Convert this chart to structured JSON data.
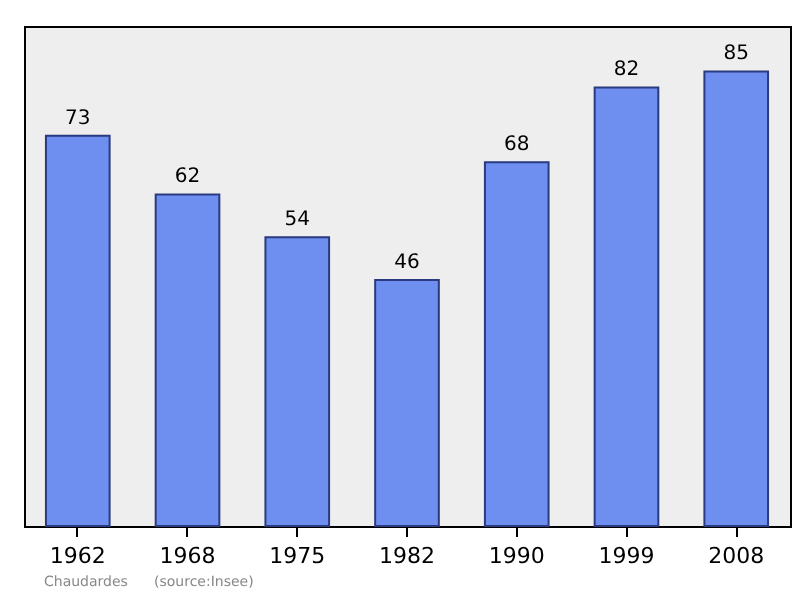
{
  "chart_data": {
    "type": "bar",
    "categories": [
      "1962",
      "1968",
      "1975",
      "1982",
      "1990",
      "1999",
      "2008"
    ],
    "values": [
      73,
      62,
      54,
      46,
      68,
      82,
      85
    ],
    "color": "#6e8ff0",
    "data_labels": true,
    "grid": false,
    "annotations": [
      "Chaudardes",
      "(source:Insee)"
    ]
  }
}
